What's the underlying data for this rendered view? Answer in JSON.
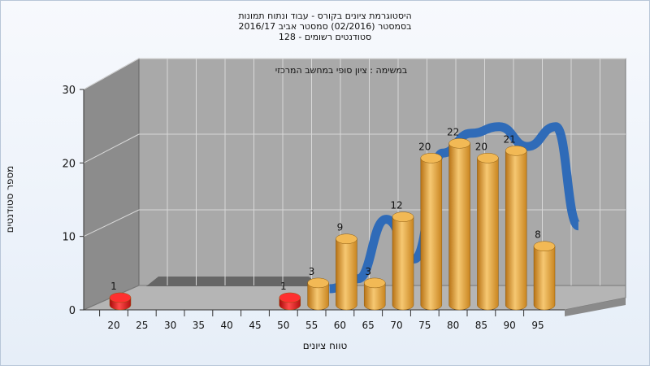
{
  "title_lines": [
    "היסטוגרמת ציונים בקורס - עבוד ונתוח תמונות",
    "בסמסטר  (02/2016)  סמסטר אביב 2016/17",
    "סטודנטים רשומים - 128"
  ],
  "chart_data": {
    "type": "bar",
    "title": "היסטוגרמת ציונים בקורס - עבוד ונתוח תמונות",
    "annotation": "במשימה : ציון סופי במחשב המרכזי",
    "xlabel": "טווח ציונים",
    "ylabel": "מספר סטודנטים",
    "ylim": [
      0,
      30
    ],
    "yticks": [
      0,
      10,
      20,
      30
    ],
    "x_ticks": [
      "20",
      "25",
      "30",
      "35",
      "40",
      "45",
      "50",
      "55",
      "60",
      "65",
      "70",
      "75",
      "80",
      "85",
      "90",
      "95"
    ],
    "bars": [
      {
        "bin": 20,
        "value": 1,
        "color": "#e02020"
      },
      {
        "bin": 50,
        "value": 1,
        "color": "#e02020"
      },
      {
        "bin": 55,
        "value": 3,
        "color": "#e8a23a"
      },
      {
        "bin": 60,
        "value": 9,
        "color": "#e8a23a"
      },
      {
        "bin": 65,
        "value": 3,
        "color": "#e8a23a"
      },
      {
        "bin": 70,
        "value": 12,
        "color": "#e8a23a"
      },
      {
        "bin": 75,
        "value": 20,
        "color": "#e8a23a"
      },
      {
        "bin": 80,
        "value": 22,
        "color": "#e8a23a"
      },
      {
        "bin": 85,
        "value": 20,
        "color": "#e8a23a"
      },
      {
        "bin": 90,
        "value": 21,
        "color": "#e8a23a"
      },
      {
        "bin": 95,
        "value": 8,
        "color": "#e8a23a"
      }
    ],
    "curve": {
      "color": "#2f6bb8",
      "points": [
        [
          55,
          0.5
        ],
        [
          60,
          2
        ],
        [
          65,
          11
        ],
        [
          70,
          5
        ],
        [
          75,
          21
        ],
        [
          80,
          24
        ],
        [
          85,
          25
        ],
        [
          90,
          22
        ],
        [
          95,
          25
        ],
        [
          99,
          10
        ]
      ]
    },
    "colors": {
      "wall": "#a9a9a9",
      "left_wall": "#8c8c8c",
      "floor": "#b5b5b5",
      "grid": "#d8d8d8"
    }
  }
}
